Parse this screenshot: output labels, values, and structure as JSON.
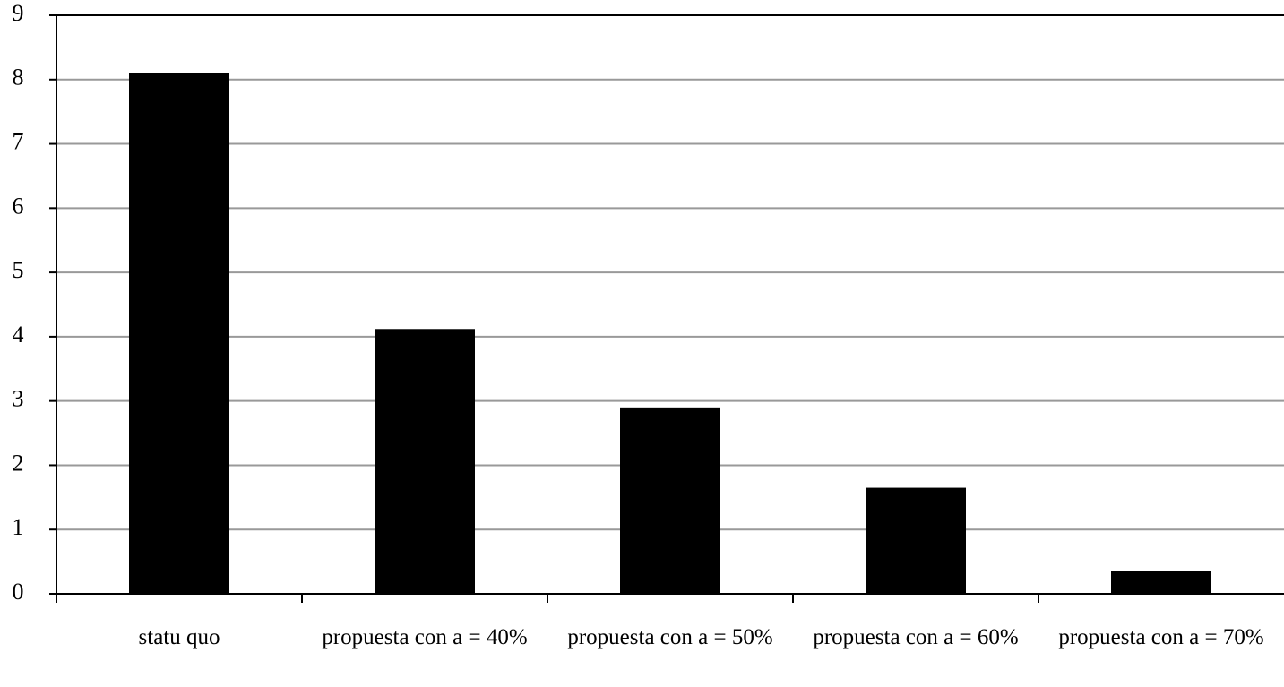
{
  "chart_data": {
    "type": "bar",
    "categories": [
      "statu quo",
      "propuesta con a = 40%",
      "propuesta con a = 50%",
      "propuesta con a = 60%",
      "propuesta con a = 70%"
    ],
    "values": [
      8.1,
      4.12,
      2.9,
      1.65,
      0.35
    ],
    "color": "#000000",
    "ylim": [
      0,
      9
    ],
    "yticks": [
      0,
      1,
      2,
      3,
      4,
      5,
      6,
      7,
      8,
      9
    ],
    "grid": true
  }
}
